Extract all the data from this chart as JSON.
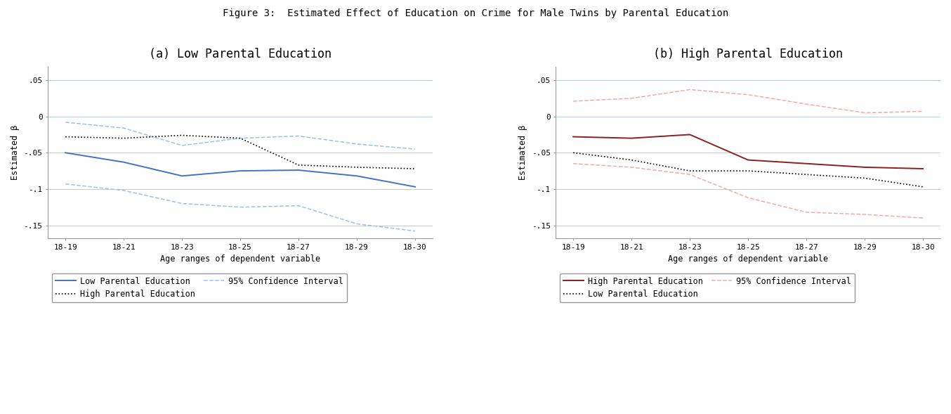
{
  "title": "Figure 3:  Estimated Effect of Education on Crime for Male Twins by Parental Education",
  "subtitle_a": "(a) Low Parental Education",
  "subtitle_b": "(b) High Parental Education",
  "xlabel": "Age ranges of dependent variable",
  "ylabel": "Estimated β",
  "x_labels": [
    "18-19",
    "18-21",
    "18-23",
    "18-25",
    "18-27",
    "18-29",
    "18-30"
  ],
  "ylim": [
    -0.168,
    0.068
  ],
  "yticks": [
    0.05,
    0.0,
    -0.05,
    -0.1,
    -0.15
  ],
  "ytick_labels": [
    ".05",
    "0",
    "-.05",
    "-.1",
    "-.15"
  ],
  "panel_a_low_solid": [
    -0.05,
    -0.063,
    -0.082,
    -0.075,
    -0.074,
    -0.082,
    -0.097
  ],
  "panel_a_high_dotted": [
    -0.028,
    -0.03,
    -0.026,
    -0.03,
    -0.067,
    -0.07,
    -0.072
  ],
  "panel_a_ci_upper": [
    -0.008,
    -0.016,
    -0.04,
    -0.03,
    -0.027,
    -0.038,
    -0.045
  ],
  "panel_a_ci_lower": [
    -0.093,
    -0.102,
    -0.12,
    -0.125,
    -0.123,
    -0.148,
    -0.158
  ],
  "panel_b_high_solid": [
    -0.028,
    -0.03,
    -0.025,
    -0.06,
    -0.065,
    -0.07,
    -0.072
  ],
  "panel_b_low_dotted": [
    -0.05,
    -0.06,
    -0.075,
    -0.075,
    -0.08,
    -0.085,
    -0.097
  ],
  "panel_b_ci_upper": [
    0.021,
    0.025,
    0.037,
    0.03,
    0.017,
    0.005,
    0.007
  ],
  "panel_b_ci_lower": [
    -0.065,
    -0.07,
    -0.08,
    -0.112,
    -0.132,
    -0.135,
    -0.14
  ],
  "color_blue_solid": "#4472C4",
  "color_blue_ci": "#9DC3E6",
  "color_dark_red_solid": "#8B2020",
  "color_red_ci": "#F4AAAA",
  "color_dotted": "#000000",
  "background_color": "#FFFFFF",
  "grid_color": "#B8CBE4",
  "title_fontsize": 10,
  "subtitle_fontsize": 12,
  "label_fontsize": 8.5,
  "tick_fontsize": 8,
  "legend_fontsize": 8.5
}
